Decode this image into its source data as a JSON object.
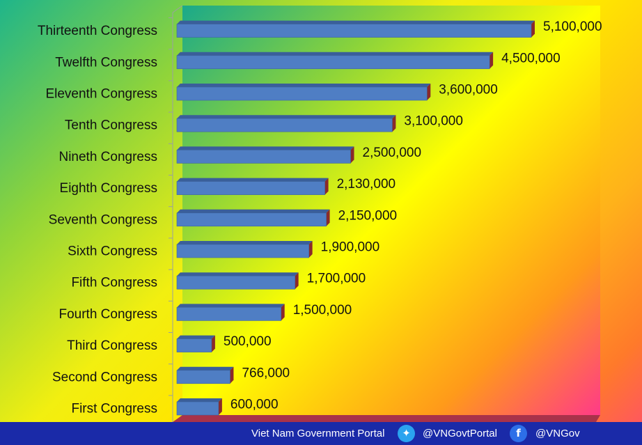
{
  "chart_data": {
    "type": "bar",
    "orientation": "horizontal",
    "categories": [
      "Thirteenth Congress",
      "Twelfth Congress",
      "Eleventh Congress",
      "Tenth Congress",
      "Nineth Congress",
      "Eighth Congress",
      "Seventh Congress",
      "Sixth Congress",
      "Fifth Congress",
      "Fourth Congress",
      "Third Congress",
      "Second Congress",
      "First Congress"
    ],
    "values": [
      5100000,
      4500000,
      3600000,
      3100000,
      2500000,
      2130000,
      2150000,
      1900000,
      1700000,
      1500000,
      500000,
      766000,
      600000
    ],
    "value_labels": [
      "5,100,000",
      "4,500,000",
      "3,600,000",
      "3,100,000",
      "2,500,000",
      "2,130,000",
      "2,150,000",
      "1,900,000",
      "1,700,000",
      "1,500,000",
      "500,000",
      "766,000",
      "600,000"
    ],
    "title": "",
    "xlabel": "",
    "ylabel": "",
    "xlim": [
      0,
      5100000
    ],
    "grid": false,
    "legend": "none",
    "bar_color": "#4f7ec4",
    "bar_shadow_color": "#8a2a2a"
  },
  "footer": {
    "portal_name": "Viet Nam Government Portal",
    "twitter_handle": "@VNGovtPortal",
    "facebook_handle": "@VNGov",
    "twitter_icon": "twitter-icon",
    "facebook_icon": "facebook-icon",
    "bar_color": "#1a2aa8"
  }
}
